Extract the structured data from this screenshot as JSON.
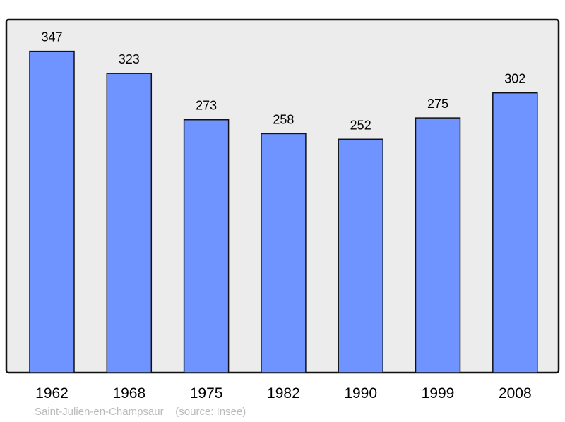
{
  "chart_data": {
    "type": "bar",
    "categories": [
      "1962",
      "1968",
      "1975",
      "1982",
      "1990",
      "1999",
      "2008"
    ],
    "values": [
      347,
      323,
      273,
      258,
      252,
      275,
      302
    ],
    "title": "",
    "xlabel": "",
    "ylabel": "",
    "ylim": [
      0,
      381
    ],
    "grid": false,
    "data_labels": true,
    "colors": {
      "bar": "#7094ff",
      "background": "#ececec",
      "border": "#111111"
    }
  },
  "footer": {
    "place": "Saint-Julien-en-Champsaur",
    "source": "(source: Insee)"
  }
}
